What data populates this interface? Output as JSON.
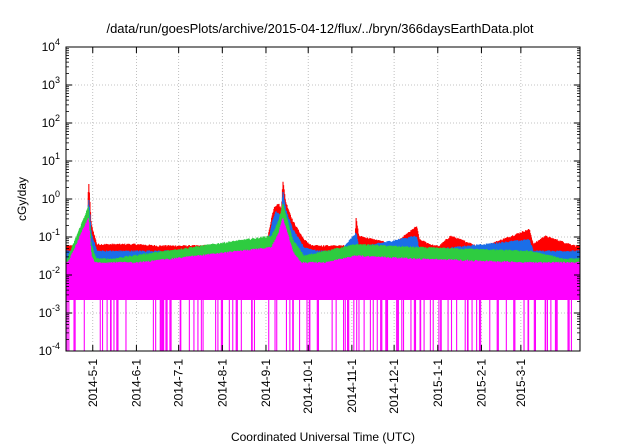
{
  "chart_data": {
    "type": "line",
    "title": "/data/run/goesPlots/archive/2015-04-12/flux/../bryn/366daysEarthData.plot",
    "xlabel": "Coordinated Universal Time (UTC)",
    "ylabel": "cGy/day",
    "yscale": "log",
    "ylim": [
      0.0001,
      10000
    ],
    "xlim": [
      "2014-04-12",
      "2015-04-12"
    ],
    "grid": true,
    "legend": "none",
    "y_ticks": [
      {
        "value": 0.0001,
        "base": "10",
        "exp": "-4"
      },
      {
        "value": 0.001,
        "base": "10",
        "exp": "-3"
      },
      {
        "value": 0.01,
        "base": "10",
        "exp": "-2"
      },
      {
        "value": 0.1,
        "base": "10",
        "exp": "-1"
      },
      {
        "value": 1,
        "base": "10",
        "exp": "0"
      },
      {
        "value": 10,
        "base": "10",
        "exp": "1"
      },
      {
        "value": 100,
        "base": "10",
        "exp": "2"
      },
      {
        "value": 1000,
        "base": "10",
        "exp": "3"
      },
      {
        "value": 10000,
        "base": "10",
        "exp": "4"
      }
    ],
    "x_ticks": [
      {
        "value": "2014-05-01",
        "label": "2014-5-1"
      },
      {
        "value": "2014-06-01",
        "label": "2014-6-1"
      },
      {
        "value": "2014-07-01",
        "label": "2014-7-1"
      },
      {
        "value": "2014-08-01",
        "label": "2014-8-1"
      },
      {
        "value": "2014-09-01",
        "label": "2014-9-1"
      },
      {
        "value": "2014-10-01",
        "label": "2014-10-1"
      },
      {
        "value": "2014-11-01",
        "label": "2014-11-1"
      },
      {
        "value": "2014-12-01",
        "label": "2014-12-1"
      },
      {
        "value": "2015-01-01",
        "label": "2015-1-1"
      },
      {
        "value": "2015-02-01",
        "label": "2015-2-1"
      },
      {
        "value": "2015-03-01",
        "label": "2015-3-1"
      }
    ],
    "series": [
      {
        "color": "#ff0000",
        "baseline_low": 0.04,
        "baseline_high": 0.055,
        "points": [
          [
            "2014-04-12",
            0.05
          ],
          [
            "2014-04-20",
            0.06
          ],
          [
            "2014-04-27",
            0.05
          ],
          [
            "2014-04-28",
            3.2
          ],
          [
            "2014-04-30",
            0.2
          ],
          [
            "2014-05-04",
            0.06
          ],
          [
            "2014-06-01",
            0.06
          ],
          [
            "2014-07-01",
            0.05
          ],
          [
            "2014-08-01",
            0.06
          ],
          [
            "2014-08-20",
            0.05
          ],
          [
            "2014-09-01",
            0.05
          ],
          [
            "2014-09-05",
            0.3
          ],
          [
            "2014-09-07",
            0.6
          ],
          [
            "2014-09-10",
            0.7
          ],
          [
            "2014-09-12",
            0.5
          ],
          [
            "2014-09-13",
            3.0
          ],
          [
            "2014-09-15",
            0.8
          ],
          [
            "2014-09-20",
            0.25
          ],
          [
            "2014-09-28",
            0.08
          ],
          [
            "2014-10-05",
            0.05
          ],
          [
            "2014-10-21",
            0.045
          ],
          [
            "2014-11-03",
            0.05
          ],
          [
            "2014-11-04",
            0.3
          ],
          [
            "2014-11-06",
            0.1
          ],
          [
            "2014-12-01",
            0.06
          ],
          [
            "2014-12-17",
            0.18
          ],
          [
            "2014-12-19",
            0.08
          ],
          [
            "2015-01-01",
            0.05
          ],
          [
            "2015-01-10",
            0.1
          ],
          [
            "2015-02-01",
            0.05
          ],
          [
            "2015-03-07",
            0.15
          ],
          [
            "2015-03-10",
            0.06
          ],
          [
            "2015-03-18",
            0.1
          ],
          [
            "2015-04-12",
            0.05
          ]
        ]
      },
      {
        "color": "#1a6ee8",
        "baseline_low": 0.02,
        "baseline_high": 0.04,
        "points": [
          [
            "2014-04-12",
            0.035
          ],
          [
            "2014-04-27",
            0.035
          ],
          [
            "2014-04-28",
            1.2
          ],
          [
            "2014-04-30",
            0.12
          ],
          [
            "2014-05-04",
            0.04
          ],
          [
            "2014-09-01",
            0.035
          ],
          [
            "2014-09-05",
            0.2
          ],
          [
            "2014-09-08",
            0.45
          ],
          [
            "2014-09-12",
            0.35
          ],
          [
            "2014-09-13",
            1.6
          ],
          [
            "2014-09-15",
            0.5
          ],
          [
            "2014-09-20",
            0.15
          ],
          [
            "2014-09-28",
            0.05
          ],
          [
            "2014-10-21",
            0.03
          ],
          [
            "2014-11-04",
            0.12
          ],
          [
            "2014-11-06",
            0.05
          ],
          [
            "2014-12-17",
            0.1
          ],
          [
            "2014-12-19",
            0.04
          ],
          [
            "2015-03-07",
            0.08
          ],
          [
            "2015-03-10",
            0.04
          ],
          [
            "2015-04-12",
            0.035
          ]
        ]
      },
      {
        "color": "#2ecc40",
        "baseline_low": 0.018,
        "baseline_high": 0.025,
        "points": [
          [
            "2014-04-12",
            0.02
          ],
          [
            "2014-04-28",
            0.6
          ],
          [
            "2014-04-30",
            0.06
          ],
          [
            "2014-05-04",
            0.022
          ],
          [
            "2014-09-05",
            0.1
          ],
          [
            "2014-09-10",
            0.25
          ],
          [
            "2014-09-13",
            0.7
          ],
          [
            "2014-09-20",
            0.08
          ],
          [
            "2014-09-28",
            0.03
          ],
          [
            "2014-11-04",
            0.06
          ],
          [
            "2014-12-17",
            0.05
          ],
          [
            "2015-03-07",
            0.04
          ],
          [
            "2015-04-12",
            0.02
          ]
        ]
      },
      {
        "color": "#ff00ff",
        "baseline_low": 0.0022,
        "baseline_high": 0.02,
        "points": [
          [
            "2014-04-12",
            0.015
          ],
          [
            "2014-04-28",
            0.3
          ],
          [
            "2014-04-30",
            0.03
          ],
          [
            "2014-05-04",
            0.015
          ],
          [
            "2014-09-05",
            0.05
          ],
          [
            "2014-09-10",
            0.12
          ],
          [
            "2014-09-13",
            0.3
          ],
          [
            "2014-09-20",
            0.04
          ],
          [
            "2014-09-28",
            0.015
          ],
          [
            "2014-11-04",
            0.03
          ],
          [
            "2014-12-17",
            0.025
          ],
          [
            "2015-03-07",
            0.02
          ],
          [
            "2015-04-12",
            0.015
          ]
        ]
      }
    ],
    "dropouts_to": 0.0001
  }
}
